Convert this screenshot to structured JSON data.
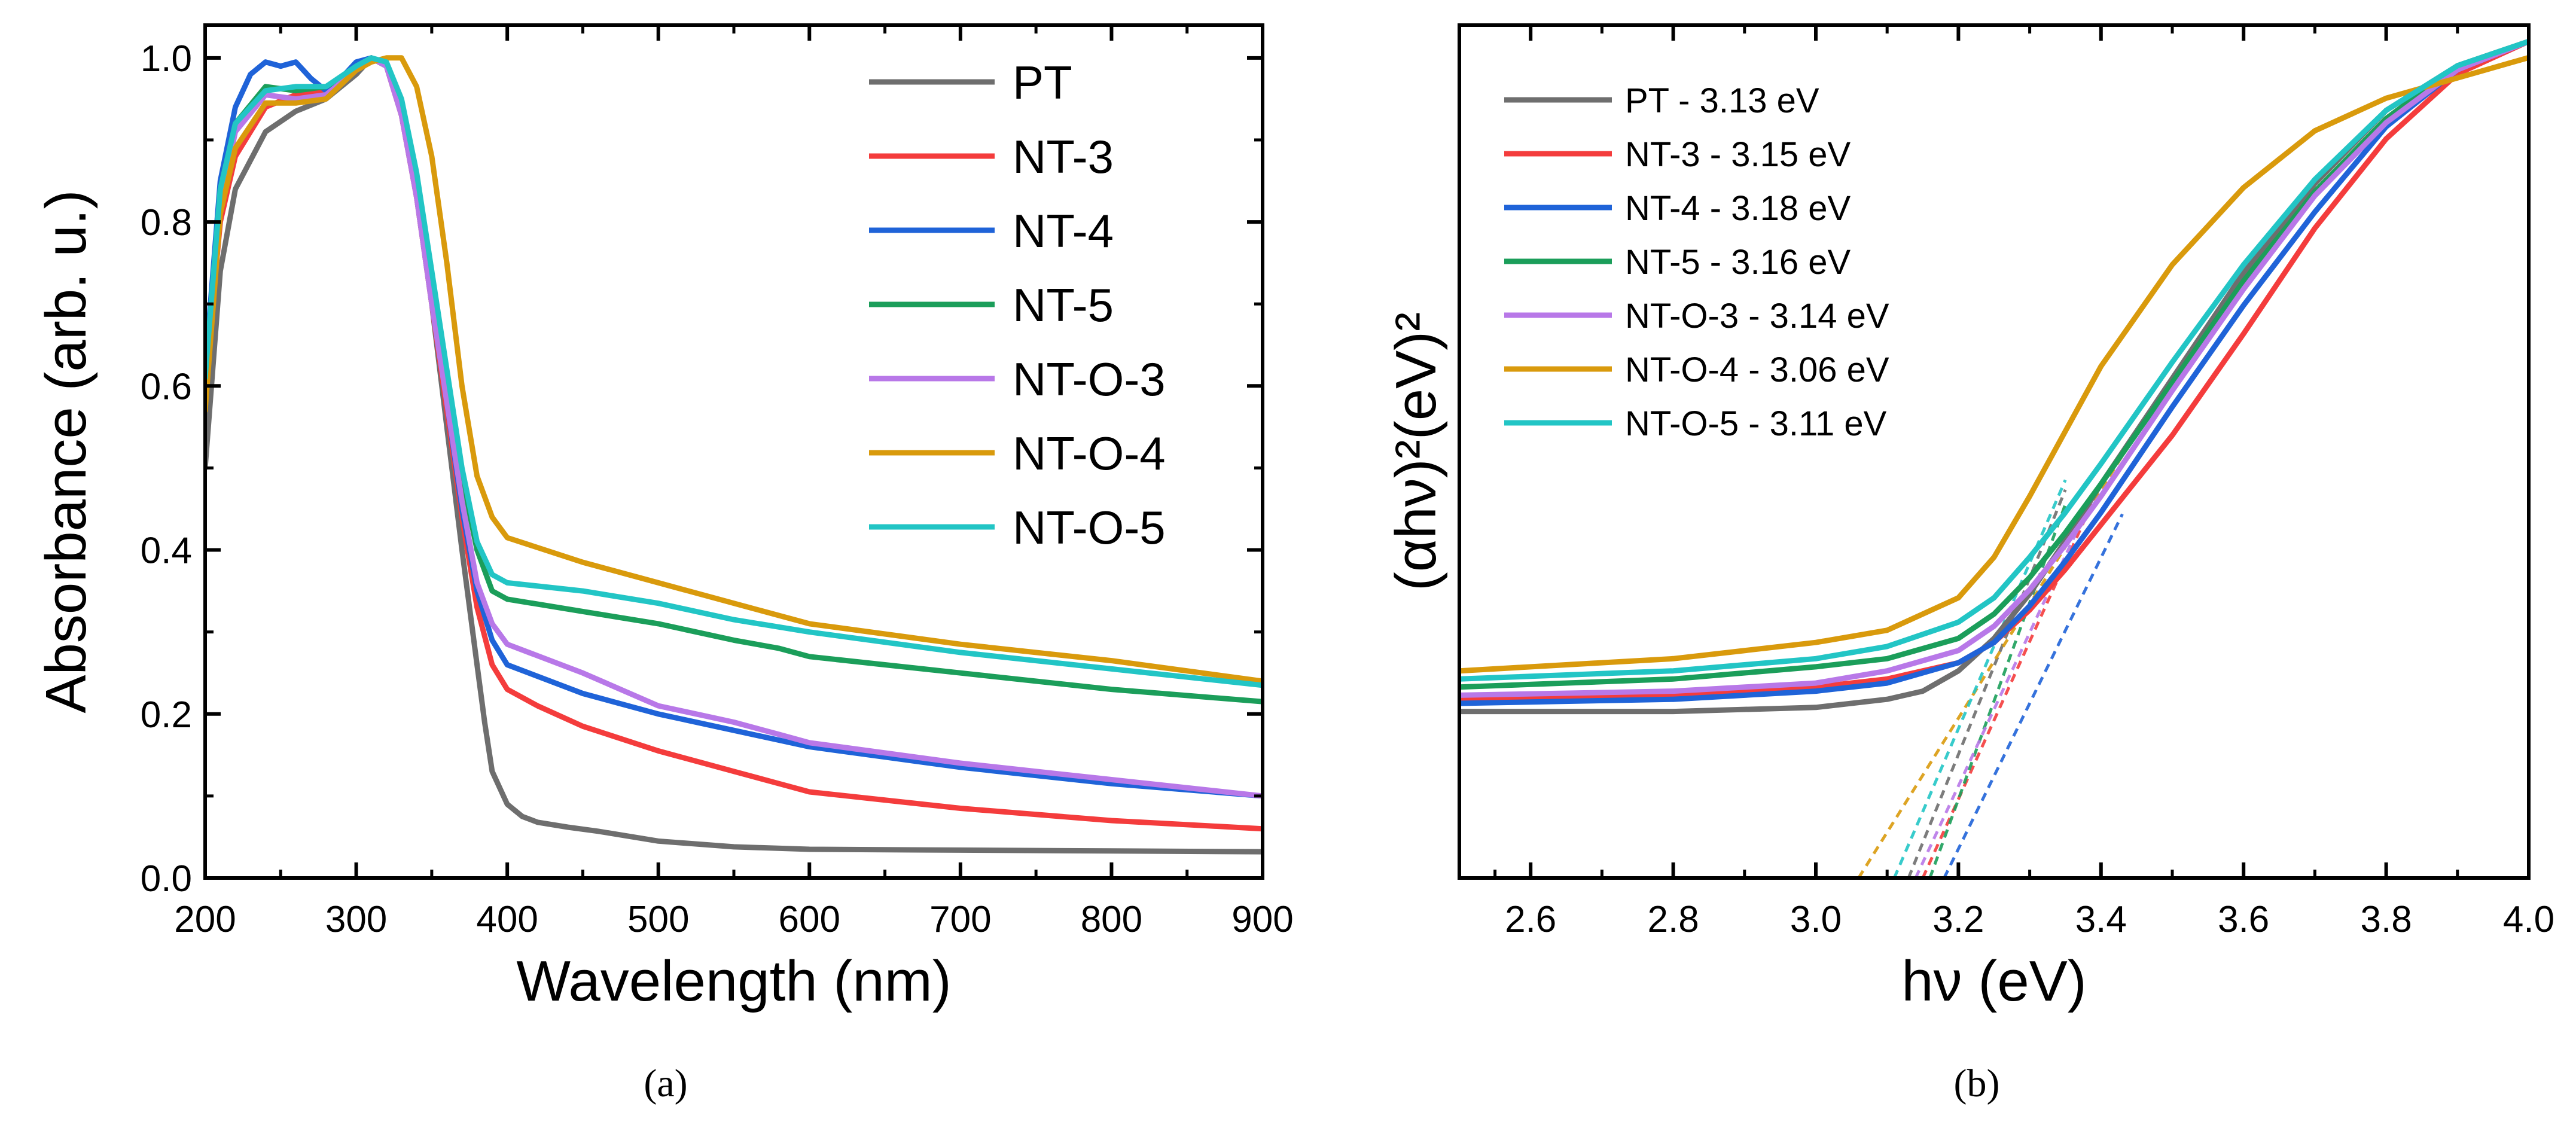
{
  "chart_data": [
    {
      "panel": "a",
      "caption": "(a)",
      "type": "line",
      "xlabel": "Wavelength (nm)",
      "ylabel": "Absorbance (arb. u.)",
      "xlim": [
        200,
        900
      ],
      "ylim": [
        0.0,
        1.04
      ],
      "xticks": [
        200,
        300,
        400,
        500,
        600,
        700,
        800,
        900
      ],
      "yticks": [
        0.0,
        0.2,
        0.4,
        0.6,
        0.8,
        1.0
      ],
      "ytick_labels": [
        "0.0",
        "0.2",
        "0.4",
        "0.6",
        "0.8",
        "1.0"
      ],
      "legend_position": "top-right",
      "series": [
        {
          "name": "PT",
          "color": "#6e6e6e",
          "x": [
            200,
            210,
            220,
            240,
            260,
            280,
            300,
            310,
            320,
            330,
            340,
            350,
            360,
            370,
            380,
            385,
            390,
            400,
            410,
            420,
            440,
            460,
            500,
            550,
            600,
            700,
            800,
            900
          ],
          "y": [
            0.5,
            0.74,
            0.84,
            0.91,
            0.935,
            0.95,
            0.98,
            1.0,
            0.99,
            0.93,
            0.83,
            0.7,
            0.55,
            0.4,
            0.26,
            0.19,
            0.13,
            0.09,
            0.075,
            0.068,
            0.062,
            0.057,
            0.045,
            0.038,
            0.035,
            0.034,
            0.033,
            0.032
          ]
        },
        {
          "name": "NT-3",
          "color": "#f43c3c",
          "x": [
            200,
            210,
            220,
            240,
            260,
            280,
            300,
            310,
            320,
            330,
            340,
            350,
            360,
            370,
            380,
            390,
            400,
            420,
            450,
            500,
            550,
            580,
            600,
            700,
            800,
            900
          ],
          "y": [
            0.6,
            0.8,
            0.88,
            0.94,
            0.955,
            0.96,
            0.985,
            1.0,
            0.99,
            0.93,
            0.83,
            0.7,
            0.57,
            0.44,
            0.33,
            0.26,
            0.23,
            0.21,
            0.185,
            0.155,
            0.13,
            0.115,
            0.105,
            0.085,
            0.07,
            0.06
          ]
        },
        {
          "name": "NT-4",
          "color": "#1f63d8",
          "x": [
            200,
            210,
            220,
            230,
            240,
            250,
            260,
            270,
            280,
            290,
            300,
            310,
            320,
            330,
            340,
            350,
            360,
            370,
            380,
            390,
            400,
            450,
            500,
            550,
            600,
            700,
            800,
            900
          ],
          "y": [
            0.62,
            0.85,
            0.94,
            0.98,
            0.995,
            0.99,
            0.995,
            0.975,
            0.96,
            0.975,
            0.995,
            1.0,
            0.99,
            0.94,
            0.84,
            0.71,
            0.58,
            0.45,
            0.35,
            0.29,
            0.26,
            0.225,
            0.2,
            0.18,
            0.16,
            0.135,
            0.115,
            0.1
          ]
        },
        {
          "name": "NT-5",
          "color": "#1b9e5a",
          "x": [
            200,
            210,
            220,
            240,
            260,
            280,
            300,
            310,
            320,
            330,
            340,
            350,
            360,
            370,
            380,
            390,
            400,
            450,
            500,
            550,
            580,
            600,
            700,
            800,
            900
          ],
          "y": [
            0.6,
            0.84,
            0.92,
            0.965,
            0.96,
            0.965,
            0.985,
            1.0,
            0.99,
            0.94,
            0.85,
            0.73,
            0.61,
            0.49,
            0.4,
            0.35,
            0.34,
            0.325,
            0.31,
            0.29,
            0.28,
            0.27,
            0.25,
            0.23,
            0.215
          ]
        },
        {
          "name": "NT-O-3",
          "color": "#b878e8",
          "x": [
            200,
            210,
            220,
            240,
            260,
            280,
            300,
            310,
            320,
            330,
            340,
            350,
            360,
            370,
            380,
            390,
            400,
            450,
            500,
            550,
            580,
            600,
            700,
            800,
            900
          ],
          "y": [
            0.58,
            0.82,
            0.91,
            0.955,
            0.95,
            0.955,
            0.985,
            1.0,
            0.99,
            0.93,
            0.83,
            0.7,
            0.58,
            0.46,
            0.36,
            0.31,
            0.285,
            0.25,
            0.21,
            0.19,
            0.175,
            0.165,
            0.14,
            0.12,
            0.1
          ]
        },
        {
          "name": "NT-O-4",
          "color": "#d99a0c",
          "x": [
            200,
            210,
            220,
            240,
            260,
            280,
            300,
            310,
            320,
            330,
            340,
            350,
            360,
            370,
            380,
            390,
            400,
            450,
            500,
            550,
            600,
            700,
            800,
            900
          ],
          "y": [
            0.57,
            0.81,
            0.89,
            0.945,
            0.945,
            0.95,
            0.985,
            0.995,
            1.0,
            1.0,
            0.965,
            0.88,
            0.75,
            0.6,
            0.49,
            0.44,
            0.415,
            0.385,
            0.36,
            0.335,
            0.31,
            0.285,
            0.265,
            0.24
          ]
        },
        {
          "name": "NT-O-5",
          "color": "#22c5c5",
          "x": [
            200,
            210,
            220,
            240,
            260,
            280,
            300,
            310,
            320,
            330,
            340,
            350,
            360,
            370,
            380,
            390,
            400,
            450,
            500,
            550,
            600,
            700,
            800,
            900
          ],
          "y": [
            0.61,
            0.84,
            0.92,
            0.96,
            0.965,
            0.965,
            0.99,
            1.0,
            0.995,
            0.95,
            0.86,
            0.74,
            0.62,
            0.5,
            0.41,
            0.37,
            0.36,
            0.35,
            0.335,
            0.315,
            0.3,
            0.275,
            0.255,
            0.235
          ]
        }
      ]
    },
    {
      "panel": "b",
      "caption": "(b)",
      "type": "line",
      "xlabel": "hν (eV)",
      "ylabel": "(αhν)²(eV)²",
      "xlim": [
        2.5,
        4.0
      ],
      "ylim": [
        0.0,
        1.05
      ],
      "xticks": [
        2.6,
        2.8,
        3.0,
        3.2,
        3.4,
        3.6,
        3.8,
        4.0
      ],
      "xtick_labels": [
        "2.6",
        "2.8",
        "3.0",
        "3.2",
        "3.4",
        "3.6",
        "3.8",
        "4.0"
      ],
      "yticks": [],
      "legend_position": "top-left",
      "series": [
        {
          "name": "PT - 3.13 eV",
          "color": "#6e6e6e",
          "bandgap": 3.13,
          "x": [
            2.5,
            2.8,
            3.0,
            3.1,
            3.15,
            3.2,
            3.25,
            3.3,
            3.35,
            3.4,
            3.5,
            3.6,
            3.7,
            3.8,
            3.9,
            4.0
          ],
          "y": [
            0.205,
            0.205,
            0.21,
            0.22,
            0.23,
            0.255,
            0.295,
            0.35,
            0.415,
            0.485,
            0.615,
            0.745,
            0.855,
            0.945,
            1.0,
            1.03
          ]
        },
        {
          "name": "NT-3 - 3.15 eV",
          "color": "#f43c3c",
          "bandgap": 3.15,
          "x": [
            2.5,
            2.8,
            3.0,
            3.1,
            3.2,
            3.25,
            3.3,
            3.35,
            3.4,
            3.5,
            3.6,
            3.7,
            3.8,
            3.9,
            4.0
          ],
          "y": [
            0.22,
            0.225,
            0.235,
            0.245,
            0.265,
            0.29,
            0.33,
            0.38,
            0.435,
            0.545,
            0.67,
            0.8,
            0.91,
            0.99,
            1.03
          ]
        },
        {
          "name": "NT-4 - 3.18 eV",
          "color": "#1f63d8",
          "bandgap": 3.18,
          "x": [
            2.5,
            2.8,
            3.0,
            3.1,
            3.2,
            3.25,
            3.3,
            3.35,
            3.4,
            3.5,
            3.6,
            3.7,
            3.8,
            3.9,
            4.0
          ],
          "y": [
            0.215,
            0.22,
            0.23,
            0.24,
            0.265,
            0.29,
            0.335,
            0.39,
            0.45,
            0.58,
            0.705,
            0.82,
            0.925,
            0.995,
            1.03
          ]
        },
        {
          "name": "NT-5 - 3.16 eV",
          "color": "#1b9e5a",
          "bandgap": 3.16,
          "x": [
            2.5,
            2.8,
            3.0,
            3.1,
            3.2,
            3.25,
            3.3,
            3.35,
            3.4,
            3.5,
            3.6,
            3.7,
            3.8,
            3.9,
            4.0
          ],
          "y": [
            0.235,
            0.245,
            0.26,
            0.27,
            0.295,
            0.325,
            0.37,
            0.425,
            0.485,
            0.61,
            0.735,
            0.845,
            0.935,
            1.0,
            1.03
          ]
        },
        {
          "name": "NT-O-3 - 3.14 eV",
          "color": "#b878e8",
          "bandgap": 3.14,
          "x": [
            2.5,
            2.8,
            3.0,
            3.1,
            3.2,
            3.25,
            3.3,
            3.35,
            3.4,
            3.5,
            3.6,
            3.7,
            3.8,
            3.9,
            4.0
          ],
          "y": [
            0.225,
            0.23,
            0.24,
            0.255,
            0.28,
            0.31,
            0.355,
            0.41,
            0.47,
            0.6,
            0.725,
            0.84,
            0.93,
            0.995,
            1.03
          ]
        },
        {
          "name": "NT-O-4 - 3.06 eV",
          "color": "#d99a0c",
          "bandgap": 3.06,
          "x": [
            2.5,
            2.8,
            3.0,
            3.1,
            3.2,
            3.25,
            3.3,
            3.35,
            3.4,
            3.5,
            3.6,
            3.7,
            3.8,
            3.9,
            4.0
          ],
          "y": [
            0.255,
            0.27,
            0.29,
            0.305,
            0.345,
            0.395,
            0.47,
            0.55,
            0.63,
            0.755,
            0.85,
            0.92,
            0.96,
            0.985,
            1.01
          ]
        },
        {
          "name": "NT-O-5 - 3.11 eV",
          "color": "#22c5c5",
          "bandgap": 3.11,
          "x": [
            2.5,
            2.8,
            3.0,
            3.1,
            3.2,
            3.25,
            3.3,
            3.35,
            3.4,
            3.5,
            3.6,
            3.7,
            3.8,
            3.9,
            4.0
          ],
          "y": [
            0.245,
            0.255,
            0.27,
            0.285,
            0.315,
            0.345,
            0.395,
            0.45,
            0.51,
            0.635,
            0.755,
            0.86,
            0.945,
            1.0,
            1.03
          ]
        }
      ]
    }
  ]
}
